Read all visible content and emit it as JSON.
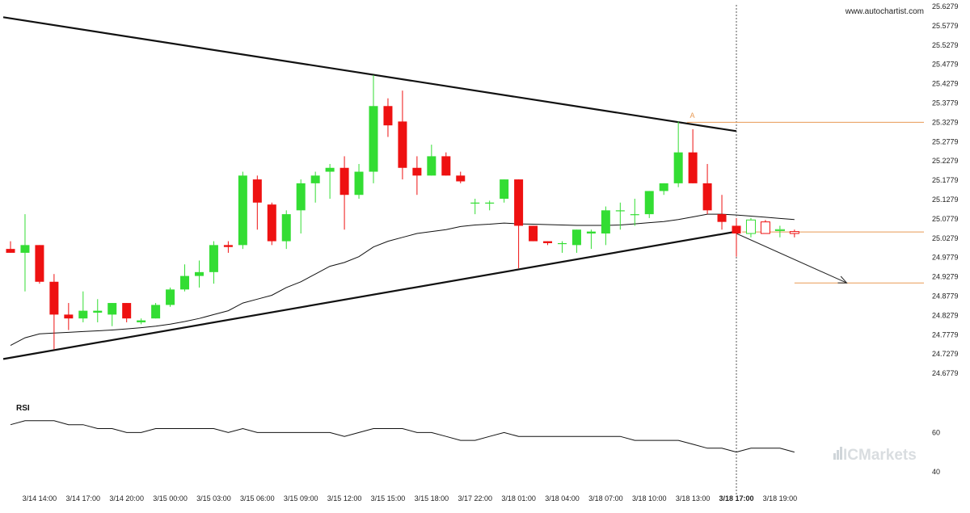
{
  "header": {
    "brand_url": "www.autochartist.com"
  },
  "watermark": {
    "text": "ICMarkets",
    "color": "#cfd5d9"
  },
  "chart_data": [
    {
      "type": "candlestick",
      "title": "",
      "xlabel": "",
      "ylabel": "",
      "ylim": [
        24.6279,
        25.6279
      ],
      "y_ticks": [
        "25.6279",
        "25.5779",
        "25.5279",
        "25.4779",
        "25.4279",
        "25.3779",
        "25.3279",
        "25.2779",
        "25.2279",
        "25.1779",
        "25.1279",
        "25.0779",
        "25.0279",
        "24.9779",
        "24.9279",
        "24.8779",
        "24.8279",
        "24.7779",
        "24.7279",
        "24.6779"
      ],
      "x_labels": [
        {
          "i": 2,
          "label": "3/14 14:00",
          "bold": false
        },
        {
          "i": 5,
          "label": "3/14 17:00",
          "bold": false
        },
        {
          "i": 8,
          "label": "3/14 20:00",
          "bold": false
        },
        {
          "i": 11,
          "label": "3/15 00:00",
          "bold": false
        },
        {
          "i": 14,
          "label": "3/15 03:00",
          "bold": false
        },
        {
          "i": 17,
          "label": "3/15 06:00",
          "bold": false
        },
        {
          "i": 20,
          "label": "3/15 09:00",
          "bold": false
        },
        {
          "i": 23,
          "label": "3/15 12:00",
          "bold": false
        },
        {
          "i": 26,
          "label": "3/15 15:00",
          "bold": false
        },
        {
          "i": 29,
          "label": "3/15 18:00",
          "bold": false
        },
        {
          "i": 32,
          "label": "3/17 22:00",
          "bold": false
        },
        {
          "i": 35,
          "label": "3/18 01:00",
          "bold": false
        },
        {
          "i": 38,
          "label": "3/18 04:00",
          "bold": false
        },
        {
          "i": 41,
          "label": "3/18 07:00",
          "bold": false
        },
        {
          "i": 44,
          "label": "3/18 10:00",
          "bold": false
        },
        {
          "i": 47,
          "label": "3/18 13:00",
          "bold": false
        },
        {
          "i": 50,
          "label": "3/18 17:00",
          "bold": true
        },
        {
          "i": 53,
          "label": "3/18 19:00",
          "bold": false
        }
      ],
      "up_color": "#33dd33",
      "down_color": "#ee1111",
      "candles": [
        {
          "o": 25.0,
          "h": 25.02,
          "l": 24.99,
          "c": 24.99
        },
        {
          "o": 24.99,
          "h": 25.09,
          "l": 24.89,
          "c": 25.01
        },
        {
          "o": 25.01,
          "h": 25.01,
          "l": 24.91,
          "c": 24.915
        },
        {
          "o": 24.915,
          "h": 24.935,
          "l": 24.74,
          "c": 24.83
        },
        {
          "o": 24.83,
          "h": 24.86,
          "l": 24.79,
          "c": 24.82
        },
        {
          "o": 24.82,
          "h": 24.89,
          "l": 24.81,
          "c": 24.84
        },
        {
          "o": 24.835,
          "h": 24.87,
          "l": 24.81,
          "c": 24.84
        },
        {
          "o": 24.83,
          "h": 24.86,
          "l": 24.8,
          "c": 24.86
        },
        {
          "o": 24.86,
          "h": 24.86,
          "l": 24.81,
          "c": 24.82
        },
        {
          "o": 24.81,
          "h": 24.82,
          "l": 24.805,
          "c": 24.815
        },
        {
          "o": 24.82,
          "h": 24.86,
          "l": 24.82,
          "c": 24.855
        },
        {
          "o": 24.855,
          "h": 24.9,
          "l": 24.85,
          "c": 24.895
        },
        {
          "o": 24.895,
          "h": 24.96,
          "l": 24.89,
          "c": 24.93
        },
        {
          "o": 24.93,
          "h": 24.97,
          "l": 24.9,
          "c": 24.94
        },
        {
          "o": 24.94,
          "h": 25.02,
          "l": 24.91,
          "c": 25.01
        },
        {
          "o": 25.01,
          "h": 25.02,
          "l": 24.99,
          "c": 25.005
        },
        {
          "o": 25.01,
          "h": 25.2,
          "l": 25.0,
          "c": 25.19
        },
        {
          "o": 25.18,
          "h": 25.19,
          "l": 25.05,
          "c": 25.12
        },
        {
          "o": 25.115,
          "h": 25.12,
          "l": 25.01,
          "c": 25.02
        },
        {
          "o": 25.02,
          "h": 25.1,
          "l": 25.0,
          "c": 25.09
        },
        {
          "o": 25.1,
          "h": 25.18,
          "l": 25.04,
          "c": 25.17
        },
        {
          "o": 25.17,
          "h": 25.2,
          "l": 25.12,
          "c": 25.19
        },
        {
          "o": 25.2,
          "h": 25.22,
          "l": 25.13,
          "c": 25.21
        },
        {
          "o": 25.21,
          "h": 25.24,
          "l": 25.05,
          "c": 25.14
        },
        {
          "o": 25.14,
          "h": 25.22,
          "l": 25.13,
          "c": 25.2
        },
        {
          "o": 25.2,
          "h": 25.45,
          "l": 25.17,
          "c": 25.37
        },
        {
          "o": 25.37,
          "h": 25.39,
          "l": 25.29,
          "c": 25.32
        },
        {
          "o": 25.33,
          "h": 25.41,
          "l": 25.18,
          "c": 25.21
        },
        {
          "o": 25.21,
          "h": 25.24,
          "l": 25.14,
          "c": 25.19
        },
        {
          "o": 25.19,
          "h": 25.27,
          "l": 25.19,
          "c": 25.24
        },
        {
          "o": 25.24,
          "h": 25.25,
          "l": 25.19,
          "c": 25.19
        },
        {
          "o": 25.19,
          "h": 25.2,
          "l": 25.17,
          "c": 25.175
        },
        {
          "o": 25.12,
          "h": 25.13,
          "l": 25.09,
          "c": 25.12
        },
        {
          "o": 25.12,
          "h": 25.125,
          "l": 25.1,
          "c": 25.12
        },
        {
          "o": 25.13,
          "h": 25.18,
          "l": 25.12,
          "c": 25.18
        },
        {
          "o": 25.18,
          "h": 25.18,
          "l": 24.95,
          "c": 25.06
        },
        {
          "o": 25.06,
          "h": 25.06,
          "l": 25.02,
          "c": 25.02
        },
        {
          "o": 25.02,
          "h": 25.02,
          "l": 25.01,
          "c": 25.015
        },
        {
          "o": 25.015,
          "h": 25.02,
          "l": 24.99,
          "c": 25.015
        },
        {
          "o": 25.01,
          "h": 25.05,
          "l": 24.99,
          "c": 25.05
        },
        {
          "o": 25.04,
          "h": 25.05,
          "l": 25.0,
          "c": 25.045
        },
        {
          "o": 25.04,
          "h": 25.11,
          "l": 25.01,
          "c": 25.1
        },
        {
          "o": 25.1,
          "h": 25.12,
          "l": 25.05,
          "c": 25.1
        },
        {
          "o": 25.09,
          "h": 25.13,
          "l": 25.06,
          "c": 25.09
        },
        {
          "o": 25.09,
          "h": 25.15,
          "l": 25.08,
          "c": 25.15
        },
        {
          "o": 25.15,
          "h": 25.17,
          "l": 25.14,
          "c": 25.17
        },
        {
          "o": 25.17,
          "h": 25.33,
          "l": 25.16,
          "c": 25.25
        },
        {
          "o": 25.25,
          "h": 25.31,
          "l": 25.17,
          "c": 25.17
        },
        {
          "o": 25.17,
          "h": 25.22,
          "l": 25.09,
          "c": 25.1
        },
        {
          "o": 25.09,
          "h": 25.14,
          "l": 25.05,
          "c": 25.07
        },
        {
          "o": 25.06,
          "h": 25.08,
          "l": 24.98,
          "c": 25.04
        }
      ],
      "projection_candles": [
        {
          "o": 25.04,
          "h": 25.08,
          "l": 25.03,
          "c": 25.075
        },
        {
          "o": 25.07,
          "h": 25.075,
          "l": 25.04,
          "c": 25.04
        },
        {
          "o": 25.05,
          "h": 25.06,
          "l": 25.03,
          "c": 25.05
        },
        {
          "o": 25.045,
          "h": 25.05,
          "l": 25.03,
          "c": 25.04
        }
      ],
      "moving_average": [
        24.75,
        24.77,
        24.78,
        24.782,
        24.784,
        24.786,
        24.788,
        24.79,
        24.793,
        24.796,
        24.8,
        24.805,
        24.812,
        24.82,
        24.83,
        24.84,
        24.86,
        24.87,
        24.88,
        24.9,
        24.915,
        24.935,
        24.955,
        24.965,
        24.98,
        25.005,
        25.02,
        25.03,
        25.04,
        25.045,
        25.05,
        25.058,
        25.062,
        25.064,
        25.067,
        25.065,
        25.064,
        25.063,
        25.062,
        25.061,
        25.061,
        25.061,
        25.062,
        25.065,
        25.068,
        25.071,
        25.076,
        25.083,
        25.09,
        25.09,
        25.088,
        25.085,
        25.082,
        25.079,
        25.076
      ],
      "trendlines": {
        "resistance": {
          "from": {
            "i": -0.5,
            "v": 25.6
          },
          "to": {
            "i": 50,
            "v": 25.305
          }
        },
        "support": {
          "from": {
            "i": -0.5,
            "v": 24.715
          },
          "to": {
            "i": 50,
            "v": 25.045
          }
        }
      },
      "pattern": {
        "vertical_marker_index": 50,
        "label_A": {
          "text": "A",
          "i": 46.8,
          "v": 25.339
        },
        "resistance_level": 25.3279,
        "current_level": 25.044,
        "target_level": 24.912,
        "forecast_arrow": {
          "from": {
            "i": 50,
            "v": 25.04
          },
          "to": {
            "i": 57.6,
            "v": 24.912
          }
        },
        "level_color": "#e89a55"
      }
    },
    {
      "type": "line",
      "name": "RSI",
      "title": "RSI",
      "ylim": [
        35,
        75
      ],
      "y_ticks": [
        40,
        60
      ],
      "values": [
        64,
        66,
        66,
        66,
        64,
        64,
        62,
        62,
        60,
        60,
        62,
        62,
        62,
        62,
        62,
        60,
        62,
        60,
        60,
        60,
        60,
        60,
        60,
        58,
        60,
        62,
        62,
        62,
        60,
        60,
        58,
        56,
        56,
        58,
        60,
        58,
        58,
        58,
        58,
        58,
        58,
        58,
        58,
        56,
        56,
        56,
        56,
        54,
        52,
        52,
        50,
        52,
        52,
        52,
        50
      ]
    }
  ]
}
